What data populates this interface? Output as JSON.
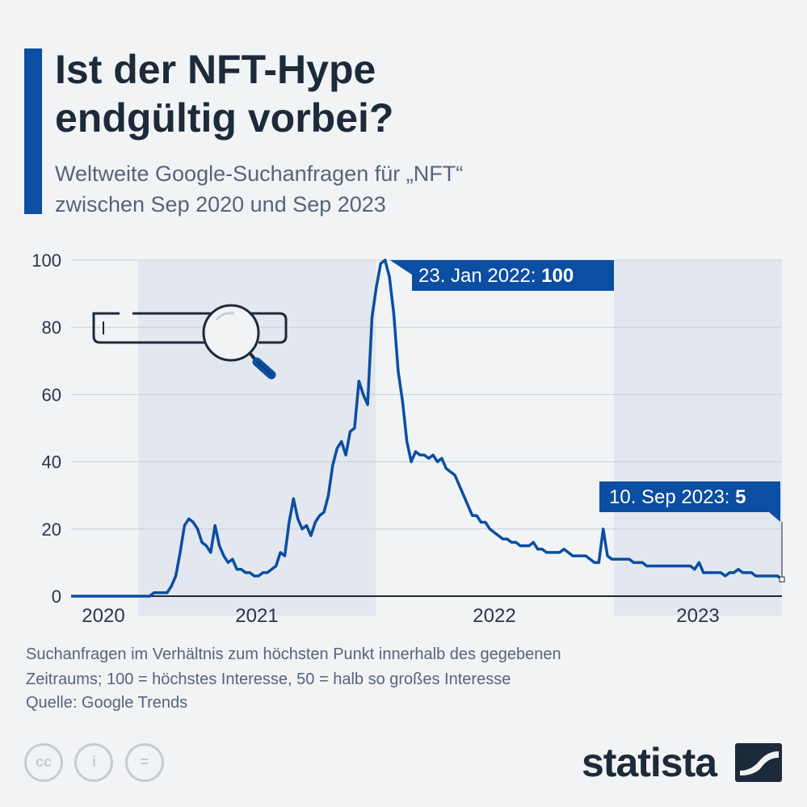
{
  "header": {
    "title_line1": "Ist der NFT-Hype",
    "title_line2": "endgültig vorbei?",
    "subtitle_line1": "Weltweite Google-Suchanfragen für „NFT“",
    "subtitle_line2": "zwischen Sep 2020 und Sep 2023"
  },
  "colors": {
    "accent": "#0b4ea2",
    "line": "#0b4ea2",
    "band": "#e3e7ef",
    "grid": "#c9cfd8",
    "text_dark": "#1d2a3a"
  },
  "chart_data": {
    "type": "line",
    "ylim": [
      0,
      100
    ],
    "y_ticks": [
      "0",
      "20",
      "40",
      "60",
      "80",
      "100"
    ],
    "x_year_labels": [
      "2020",
      "2021",
      "2022",
      "2023"
    ],
    "grid": true,
    "series": [
      {
        "values": [
          0,
          0,
          0,
          0,
          0,
          0,
          0,
          0,
          0,
          0,
          0,
          0,
          0,
          0,
          0,
          0,
          0,
          0,
          0,
          1,
          1,
          1,
          1,
          3,
          6,
          13,
          21,
          23,
          22,
          20,
          16,
          15,
          13,
          21,
          15,
          12,
          10,
          11,
          8,
          8,
          7,
          7,
          6,
          6,
          7,
          7,
          8,
          9,
          13,
          12,
          22,
          29,
          23,
          20,
          21,
          18,
          22,
          24,
          25,
          30,
          39,
          44,
          46,
          42,
          49,
          50,
          64,
          60,
          57,
          83,
          92,
          99,
          100,
          95,
          84,
          67,
          58,
          46,
          40,
          43,
          42,
          42,
          41,
          42,
          40,
          41,
          38,
          37,
          36,
          33,
          30,
          27,
          24,
          24,
          22,
          22,
          20,
          19,
          18,
          17,
          17,
          16,
          16,
          15,
          15,
          15,
          16,
          14,
          14,
          13,
          13,
          13,
          13,
          14,
          13,
          12,
          12,
          12,
          12,
          11,
          10,
          10,
          20,
          12,
          11,
          11,
          11,
          11,
          11,
          10,
          10,
          10,
          9,
          9,
          9,
          9,
          9,
          9,
          9,
          9,
          9,
          9,
          9,
          8,
          10,
          7,
          7,
          7,
          7,
          7,
          6,
          7,
          7,
          8,
          7,
          7,
          7,
          6,
          6,
          6,
          6,
          6,
          6,
          5
        ]
      }
    ],
    "annotations": [
      {
        "label": "23. Jan 2022: ",
        "value": "100"
      },
      {
        "label": "10. Sep 2023: ",
        "value": "5"
      }
    ]
  },
  "footer": {
    "note_line1": "Suchanfragen im Verhältnis zum höchsten Punkt innerhalb des gegebenen",
    "note_line2": "Zeitraums; 100 = höchstes Interesse, 50 = halb so großes Interesse",
    "source": "Quelle: Google Trends",
    "brand": "statista",
    "license_icons": [
      "cc-icon",
      "by-icon",
      "nd-icon"
    ],
    "license_glyphs": [
      "cc",
      "i",
      "="
    ]
  }
}
